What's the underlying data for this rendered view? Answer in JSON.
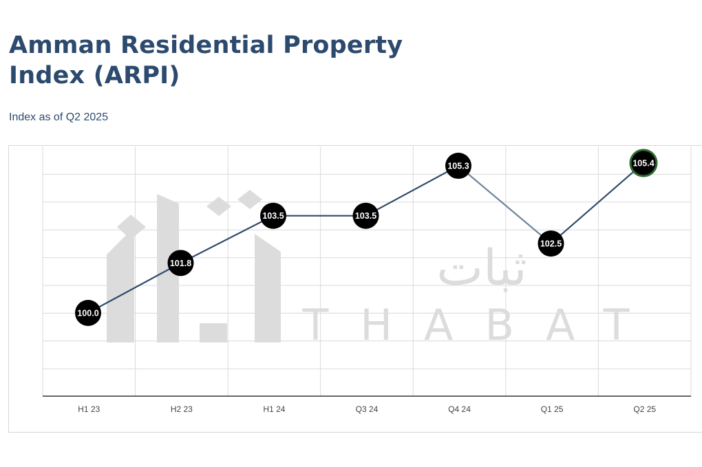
{
  "header": {
    "title_line1": "Amman Residential Property",
    "title_line2": "Index (ARPI)",
    "subtitle": "Index as of Q2 2025"
  },
  "watermark": {
    "latin": "THABAT",
    "arabic": "ثبات"
  },
  "colors": {
    "title": "#2c4a6e",
    "line": "#2f4a6b",
    "marker_fill": "#000000",
    "marker_label": "#ffffff",
    "last_marker_ring": "#2e6b2e",
    "grid": "#d9d9d9",
    "axis": "#333333",
    "watermark": "#dcdcdc"
  },
  "chart_data": {
    "type": "line",
    "categories": [
      "H1 23",
      "H2 23",
      "H1 24",
      "Q3 24",
      "Q4 24",
      "Q1 25",
      "Q2 25"
    ],
    "series": [
      {
        "values": [
          100.0,
          101.8,
          103.5,
          103.5,
          105.3,
          102.5,
          105.4
        ]
      }
    ],
    "labels": [
      "100.0",
      "101.8",
      "103.5",
      "103.5",
      "105.3",
      "102.5",
      "105.4"
    ],
    "title": "",
    "xlabel": "",
    "ylabel": "",
    "grid": true,
    "legend": "none"
  }
}
